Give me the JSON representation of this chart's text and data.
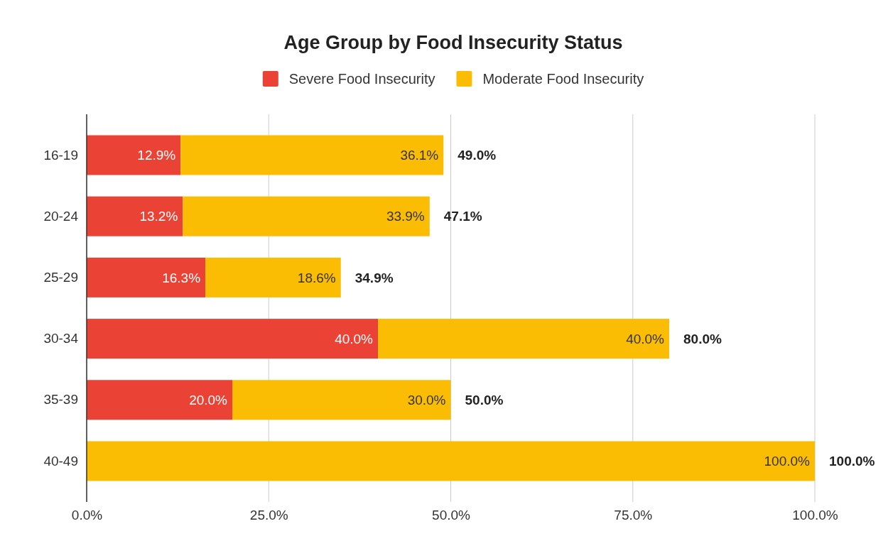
{
  "chart_data": {
    "type": "bar",
    "orientation": "horizontal",
    "stacked": true,
    "title": "Age Group by Food Insecurity Status",
    "categories": [
      "16-19",
      "20-24",
      "25-29",
      "30-34",
      "35-39",
      "40-49"
    ],
    "series": [
      {
        "name": "Severe Food Insecurity",
        "color": "#ea4335",
        "values": [
          12.9,
          13.2,
          16.3,
          40.0,
          20.0,
          0
        ],
        "value_labels": [
          "12.9%",
          "13.2%",
          "16.3%",
          "40.0%",
          "20.0%",
          null
        ]
      },
      {
        "name": "Moderate Food Insecurity",
        "color": "#fbbc04",
        "values": [
          36.1,
          33.9,
          18.6,
          40.0,
          30.0,
          100.0
        ],
        "value_labels": [
          "36.1%",
          "33.9%",
          "18.6%",
          "40.0%",
          "30.0%",
          "100.0%"
        ]
      }
    ],
    "totals": [
      "49.0%",
      "47.1%",
      "34.9%",
      "80.0%",
      "50.0%",
      "100.0%"
    ],
    "xlim": [
      0,
      100
    ],
    "xticks": [
      {
        "value": 0,
        "label": "0.0%"
      },
      {
        "value": 25,
        "label": "25.0%"
      },
      {
        "value": 50,
        "label": "50.0%"
      },
      {
        "value": 75,
        "label": "75.0%"
      },
      {
        "value": 100,
        "label": "100.0%"
      }
    ],
    "grid": "x",
    "legend": "top"
  }
}
